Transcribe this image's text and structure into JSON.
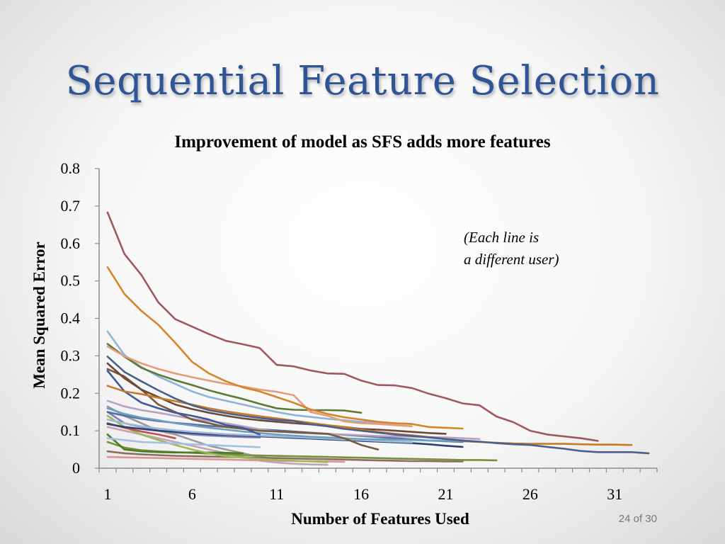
{
  "slide": {
    "title": "Sequential Feature Selection",
    "annotation_line1": "(Each line is",
    "annotation_line2": "a different user)",
    "page_number": "24 of 30"
  },
  "chart_data": {
    "type": "line",
    "title": "Improvement of model as SFS adds more features",
    "xlabel": "Number of Features Used",
    "ylabel": "Mean Squared Error",
    "xlim": [
      1,
      33
    ],
    "ylim": [
      0,
      0.8
    ],
    "x_ticks": [
      "1",
      "6",
      "11",
      "16",
      "21",
      "26",
      "31"
    ],
    "y_ticks": [
      "0",
      "0.1",
      "0.2",
      "0.3",
      "0.4",
      "0.5",
      "0.6",
      "0.7",
      "0.8"
    ],
    "series": [
      {
        "color": "#a0585e",
        "values": [
          0.683,
          0.572,
          0.516,
          0.443,
          0.398,
          0.378,
          0.358,
          0.34,
          0.331,
          0.321,
          0.276,
          0.272,
          0.261,
          0.253,
          0.252,
          0.234,
          0.222,
          0.221,
          0.214,
          0.199,
          0.187,
          0.173,
          0.168,
          0.138,
          0.123,
          0.1,
          0.09,
          0.085,
          0.08,
          0.073
        ]
      },
      {
        "color": "#d7842b",
        "values": [
          0.537,
          0.465,
          0.42,
          0.383,
          0.335,
          0.284,
          0.253,
          0.232,
          0.216,
          0.205,
          0.19,
          0.175,
          0.157,
          0.145,
          0.136,
          0.13,
          0.124,
          0.12,
          0.118,
          0.11,
          0.108,
          0.106
        ]
      },
      {
        "color": "#4a5f8e",
        "values": [
          0.298,
          0.257,
          0.232,
          0.208,
          0.186,
          0.168,
          0.155,
          0.147,
          0.14,
          0.134,
          0.129,
          0.126,
          0.117,
          0.112,
          0.105,
          0.1,
          0.095,
          0.09,
          0.086,
          0.082,
          0.078,
          0.074,
          0.071,
          0.067,
          0.064,
          0.062,
          0.057,
          0.052,
          0.046,
          0.043,
          0.043,
          0.043,
          0.04
        ]
      },
      {
        "color": "#e39d7a",
        "values": [
          0.325,
          0.299,
          0.28,
          0.265,
          0.253,
          0.243,
          0.234,
          0.225,
          0.218,
          0.21,
          0.204,
          0.195,
          0.15,
          0.14,
          0.125,
          0.12,
          0.118,
          0.115,
          0.112
        ]
      },
      {
        "color": "#c87a28",
        "values": [
          0.22,
          0.205,
          0.198,
          0.188,
          0.179,
          0.17,
          0.16,
          0.152,
          0.145,
          0.139,
          0.133,
          0.127,
          0.121,
          0.115,
          0.11,
          0.103,
          0.097,
          0.092,
          0.088,
          0.083,
          0.078,
          0.073,
          0.07,
          0.068,
          0.066,
          0.065,
          0.065,
          0.065,
          0.064,
          0.063,
          0.063,
          0.062
        ]
      },
      {
        "color": "#5b7a35",
        "values": [
          0.332,
          0.298,
          0.268,
          0.25,
          0.235,
          0.222,
          0.208,
          0.196,
          0.185,
          0.172,
          0.16,
          0.156,
          0.155,
          0.155,
          0.154,
          0.148
        ]
      },
      {
        "color": "#8eb4d6",
        "values": [
          0.365,
          0.302,
          0.27,
          0.245,
          0.225,
          0.205,
          0.19,
          0.18,
          0.17,
          0.16,
          0.15,
          0.142,
          0.137,
          0.132,
          0.128,
          0.124,
          0.122,
          0.12,
          0.118
        ]
      },
      {
        "color": "#6b4a3a",
        "values": [
          0.28,
          0.24,
          0.21,
          0.19,
          0.17,
          0.158,
          0.148,
          0.14,
          0.133,
          0.128,
          0.124,
          0.12,
          0.117,
          0.114,
          0.11,
          0.105,
          0.103,
          0.1,
          0.097,
          0.094,
          0.092
        ]
      },
      {
        "color": "#3f5a9a",
        "values": [
          0.26,
          0.205,
          0.175,
          0.16,
          0.148,
          0.14,
          0.13,
          0.115,
          0.108,
          0.09
        ]
      },
      {
        "color": "#7a5a3a",
        "values": [
          0.265,
          0.245,
          0.21,
          0.17,
          0.15,
          0.13,
          0.12,
          0.11,
          0.105,
          0.1,
          0.098,
          0.096,
          0.094,
          0.092,
          0.08,
          0.062,
          0.05
        ]
      },
      {
        "color": "#b8a0c0",
        "values": [
          0.18,
          0.165,
          0.155,
          0.148,
          0.14,
          0.132,
          0.126,
          0.12,
          0.112,
          0.104,
          0.098,
          0.095,
          0.093,
          0.091,
          0.09,
          0.088,
          0.086,
          0.085,
          0.084,
          0.083,
          0.082,
          0.08,
          0.078
        ]
      },
      {
        "color": "#6aa0c0",
        "values": [
          0.16,
          0.145,
          0.135,
          0.128,
          0.12,
          0.114,
          0.108,
          0.103,
          0.098,
          0.094,
          0.09,
          0.087,
          0.084,
          0.082,
          0.08,
          0.078,
          0.077,
          0.076,
          0.075,
          0.074,
          0.073,
          0.072,
          0.07
        ]
      },
      {
        "color": "#5a6ea0",
        "values": [
          0.15,
          0.14,
          0.132,
          0.126,
          0.121,
          0.117,
          0.113,
          0.11,
          0.107,
          0.104,
          0.101,
          0.098,
          0.095,
          0.092,
          0.089,
          0.086,
          0.083,
          0.08,
          0.077,
          0.074,
          0.072,
          0.07
        ]
      },
      {
        "color": "#9fb9d4",
        "values": [
          0.13,
          0.12,
          0.112,
          0.106,
          0.101,
          0.097,
          0.094,
          0.091,
          0.089,
          0.087,
          0.085,
          0.083,
          0.081,
          0.079,
          0.077,
          0.075,
          0.073,
          0.071,
          0.069
        ]
      },
      {
        "color": "#2f4070",
        "values": [
          0.118,
          0.11,
          0.105,
          0.1,
          0.097,
          0.094,
          0.091,
          0.089,
          0.087,
          0.085,
          0.083,
          0.081,
          0.079,
          0.077,
          0.075,
          0.073,
          0.071,
          0.069,
          0.067,
          0.064,
          0.06,
          0.057
        ]
      },
      {
        "color": "#c0504d",
        "values": [
          0.12,
          0.108,
          0.098,
          0.09,
          0.08
        ]
      },
      {
        "color": "#a4c0e0",
        "values": [
          0.08,
          0.075,
          0.07,
          0.068,
          0.066,
          0.064,
          0.062,
          0.06,
          0.058,
          0.056
        ]
      },
      {
        "color": "#9bbb59",
        "values": [
          0.14,
          0.11,
          0.09,
          0.075,
          0.062,
          0.05,
          0.04,
          0.032,
          0.028,
          0.025,
          0.022,
          0.02,
          0.018,
          0.016
        ]
      },
      {
        "color": "#4f7a28",
        "values": [
          0.09,
          0.05,
          0.045,
          0.043,
          0.042,
          0.042,
          0.042,
          0.041,
          0.04
        ]
      },
      {
        "color": "#76923c",
        "values": [
          0.07,
          0.055,
          0.048,
          0.045,
          0.043,
          0.041,
          0.039,
          0.037,
          0.035,
          0.034,
          0.033,
          0.032,
          0.031,
          0.03,
          0.029,
          0.028,
          0.027,
          0.026,
          0.025,
          0.024,
          0.023,
          0.022,
          0.022,
          0.021
        ]
      },
      {
        "color": "#8b6e60",
        "values": [
          0.045,
          0.04,
          0.037,
          0.035,
          0.033,
          0.032,
          0.031,
          0.03,
          0.029,
          0.028,
          0.027,
          0.026,
          0.025,
          0.024,
          0.023,
          0.022,
          0.021,
          0.02,
          0.019,
          0.019,
          0.018,
          0.018
        ]
      },
      {
        "color": "#d99594",
        "values": [
          0.03,
          0.029,
          0.028,
          0.027,
          0.026,
          0.025,
          0.024,
          0.023,
          0.022,
          0.021,
          0.02,
          0.019,
          0.019,
          0.018,
          0.017
        ]
      },
      {
        "color": "#c3a3b3",
        "values": [
          0.11,
          0.1,
          0.09,
          0.08,
          0.07,
          0.06,
          0.05,
          0.04,
          0.03,
          0.02,
          0.015,
          0.012,
          0.01,
          0.009
        ]
      },
      {
        "color": "#9a9a9a",
        "values": [
          0.165,
          0.14,
          0.12,
          0.1,
          0.09,
          0.075,
          0.06,
          0.05,
          0.04,
          0.03,
          0.025
        ]
      },
      {
        "color": "#7f7fbf",
        "values": [
          0.15,
          0.12,
          0.11,
          0.1,
          0.095,
          0.09,
          0.087,
          0.085,
          0.083,
          0.082
        ]
      }
    ]
  }
}
